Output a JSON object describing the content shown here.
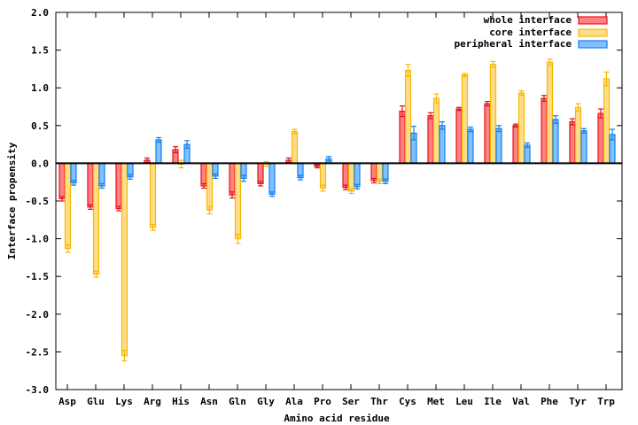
{
  "chart_data": {
    "type": "bar",
    "title": "",
    "xlabel": "Amino acid residue",
    "ylabel": "Interface propensity",
    "ylim": [
      -3.0,
      2.0
    ],
    "yticks": [
      "-3.0",
      "-2.5",
      "-2.0",
      "-1.5",
      "-1.0",
      "-0.5",
      "0.0",
      "0.5",
      "1.0",
      "1.5",
      "2.0"
    ],
    "ytick_values": [
      -3.0,
      -2.5,
      -2.0,
      -1.5,
      -1.0,
      -0.5,
      0.0,
      0.5,
      1.0,
      1.5,
      2.0
    ],
    "legend_position": "top-right",
    "categories": [
      "Asp",
      "Glu",
      "Lys",
      "Arg",
      "His",
      "Asn",
      "Gln",
      "Gly",
      "Ala",
      "Pro",
      "Ser",
      "Thr",
      "Cys",
      "Met",
      "Leu",
      "Ile",
      "Val",
      "Phe",
      "Tyr",
      "Trp"
    ],
    "series": [
      {
        "name": "whole interface",
        "color": "#ff8080",
        "stroke": "#e8101a",
        "values": [
          -0.47,
          -0.58,
          -0.6,
          0.04,
          0.18,
          -0.3,
          -0.42,
          -0.27,
          0.04,
          -0.04,
          -0.32,
          -0.23,
          0.69,
          0.63,
          0.72,
          0.79,
          0.5,
          0.86,
          0.55,
          0.66
        ],
        "errors": [
          0.03,
          0.03,
          0.03,
          0.03,
          0.04,
          0.03,
          0.04,
          0.03,
          0.03,
          0.02,
          0.03,
          0.03,
          0.07,
          0.04,
          0.02,
          0.03,
          0.02,
          0.04,
          0.04,
          0.06
        ]
      },
      {
        "name": "core interface",
        "color": "#ffdd88",
        "stroke": "#f8b800",
        "values": [
          -1.13,
          -1.47,
          -2.55,
          -0.85,
          -0.01,
          -0.62,
          -1.0,
          -0.01,
          0.42,
          -0.33,
          -0.37,
          -0.24,
          1.23,
          0.86,
          1.17,
          1.31,
          0.93,
          1.34,
          0.74,
          1.12
        ],
        "errors": [
          0.05,
          0.04,
          0.07,
          0.04,
          0.05,
          0.05,
          0.06,
          0.03,
          0.03,
          0.04,
          0.03,
          0.03,
          0.08,
          0.06,
          0.02,
          0.04,
          0.03,
          0.04,
          0.05,
          0.09
        ]
      },
      {
        "name": "peripheral interface",
        "color": "#80c0ff",
        "stroke": "#1080f0",
        "values": [
          -0.26,
          -0.3,
          -0.18,
          0.31,
          0.25,
          -0.17,
          -0.2,
          -0.41,
          -0.19,
          0.06,
          -0.31,
          -0.24,
          0.4,
          0.5,
          0.45,
          0.46,
          0.24,
          0.58,
          0.43,
          0.38
        ],
        "errors": [
          0.03,
          0.03,
          0.03,
          0.03,
          0.05,
          0.03,
          0.04,
          0.03,
          0.03,
          0.03,
          0.03,
          0.03,
          0.09,
          0.05,
          0.03,
          0.04,
          0.03,
          0.05,
          0.03,
          0.07
        ]
      }
    ]
  }
}
